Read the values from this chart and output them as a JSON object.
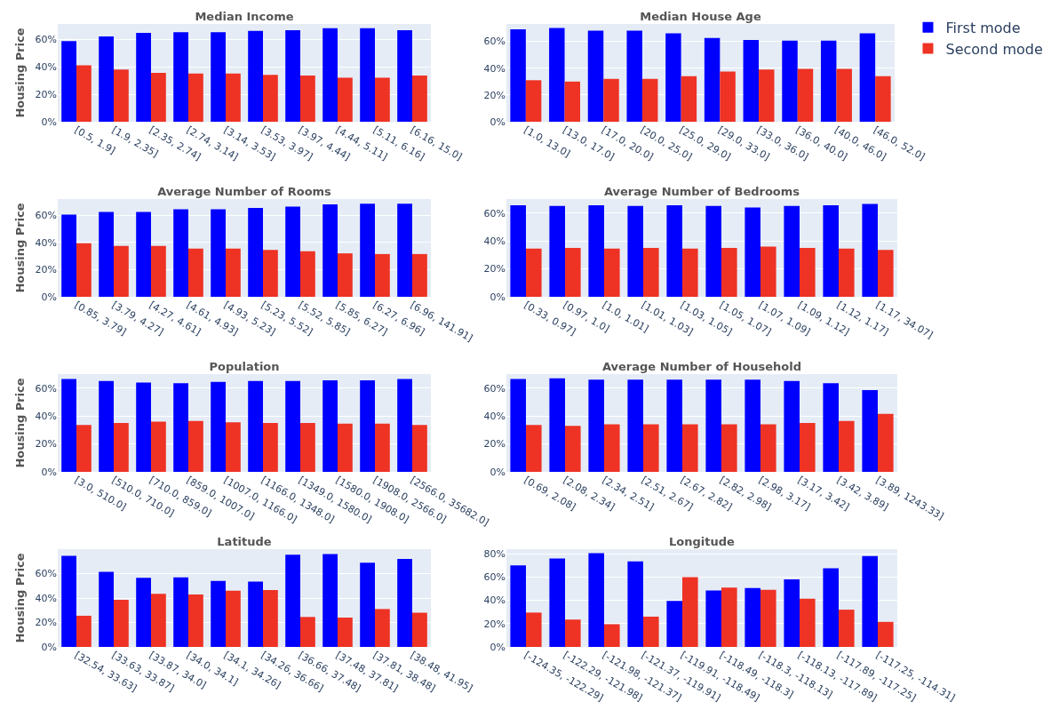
{
  "chart_data": [
    {
      "type": "bar",
      "title": "Median Income",
      "ylabel": "Housing Price",
      "categories": [
        "[0.5, 1.9]",
        "[1.9, 2.35]",
        "[2.35, 2.74]",
        "[2.74, 3.14]",
        "[3.14, 3.53]",
        "[3.53, 3.97]",
        "[3.97, 4.44]",
        "[4.44, 5.11]",
        "[5.11, 6.16]",
        "[6.16, 15.0]"
      ],
      "series": [
        {
          "color": "#0000ff",
          "values": [
            58.5,
            62,
            64.5,
            65,
            65,
            66,
            66.5,
            68,
            68,
            66.5
          ]
        },
        {
          "color": "#ee3224",
          "values": [
            41,
            38,
            35.5,
            35,
            35,
            34,
            33.5,
            32,
            32,
            33.5
          ]
        }
      ],
      "ylim": [
        0,
        71
      ],
      "yticks": [
        {
          "value": 0,
          "label": "0%"
        },
        {
          "value": 20,
          "label": "20%"
        },
        {
          "value": 40,
          "label": "40%"
        },
        {
          "value": 60,
          "label": "60%"
        }
      ],
      "grid": "y"
    },
    {
      "type": "bar",
      "title": "Median House Age",
      "categories": [
        "[1.0, 13.0]",
        "[13.0, 17.0]",
        "[17.0, 20.0]",
        "[20.0, 25.0]",
        "[25.0, 29.0]",
        "[29.0, 33.0]",
        "[33.0, 36.0]",
        "[36.0, 40.0]",
        "[40.0, 46.0]",
        "[46.0, 52.0]"
      ],
      "series": [
        {
          "name": "First mode",
          "color": "#0000ff",
          "values": [
            69,
            70,
            68,
            68,
            66,
            62.5,
            61,
            60.5,
            60.5,
            66
          ]
        },
        {
          "name": "Second mode",
          "color": "#ee3224",
          "values": [
            31,
            30,
            32,
            32,
            34,
            37.5,
            39,
            39.5,
            39.5,
            34
          ]
        }
      ],
      "ylim": [
        0,
        73
      ],
      "yticks": [
        {
          "value": 0,
          "label": "0%"
        },
        {
          "value": 20,
          "label": "20%"
        },
        {
          "value": 40,
          "label": "40%"
        },
        {
          "value": 60,
          "label": "60%"
        }
      ],
      "grid": "y",
      "legend": "top right"
    },
    {
      "type": "bar",
      "title": "Average Number of Rooms",
      "ylabel": "Housing Price",
      "categories": [
        "[0.85, 3.79]",
        "[3.79, 4.27]",
        "[4.27, 4.61]",
        "[4.61, 4.93]",
        "[4.93, 5.23]",
        "[5.23, 5.52]",
        "[5.52, 5.85]",
        "[5.85, 6.27]",
        "[6.27, 6.96]",
        "[6.96, 141.91]"
      ],
      "series": [
        {
          "color": "#0000ff",
          "values": [
            60.5,
            62.5,
            62.5,
            64.5,
            64.5,
            65.5,
            66.5,
            68,
            68.5,
            68.5
          ]
        },
        {
          "color": "#ee3224",
          "values": [
            39.5,
            37.5,
            37.5,
            35.5,
            35.5,
            34.5,
            33.5,
            32,
            31.5,
            31.5
          ]
        }
      ],
      "ylim": [
        0,
        72
      ],
      "yticks": [
        {
          "value": 0,
          "label": "0%"
        },
        {
          "value": 20,
          "label": "20%"
        },
        {
          "value": 40,
          "label": "40%"
        },
        {
          "value": 60,
          "label": "60%"
        }
      ],
      "grid": "y"
    },
    {
      "type": "bar",
      "title": "Average Number of Bedrooms",
      "categories": [
        "[0.33, 0.97]",
        "[0.97, 1.0]",
        "[1.0, 1.01]",
        "[1.01, 1.03]",
        "[1.03, 1.05]",
        "[1.05, 1.07]",
        "[1.07, 1.09]",
        "[1.09, 1.12]",
        "[1.12, 1.17]",
        "[1.17, 34.07]"
      ],
      "series": [
        {
          "color": "#0000ff",
          "values": [
            65.5,
            65,
            65.5,
            65,
            65.5,
            65,
            64,
            65,
            65.5,
            66.5
          ]
        },
        {
          "color": "#ee3224",
          "values": [
            34.5,
            35,
            34.5,
            35,
            34.5,
            35,
            36,
            35,
            34.5,
            33.5
          ]
        }
      ],
      "ylim": [
        0,
        70
      ],
      "yticks": [
        {
          "value": 0,
          "label": "0%"
        },
        {
          "value": 20,
          "label": "20%"
        },
        {
          "value": 40,
          "label": "40%"
        },
        {
          "value": 60,
          "label": "60%"
        }
      ],
      "grid": "y"
    },
    {
      "type": "bar",
      "title": "Population",
      "ylabel": "Housing Price",
      "categories": [
        "[3.0, 510.0]",
        "[510.0, 710.0]",
        "[710.0, 859.0]",
        "[859.0, 1007.0]",
        "[1007.0, 1166.0]",
        "[1166.0, 1348.0]",
        "[1349.0, 1580.0]",
        "[1580.0, 1908.0]",
        "[1908.0, 2566.0]",
        "[2566.0, 35682.0]"
      ],
      "series": [
        {
          "color": "#0000ff",
          "values": [
            66.5,
            65,
            64,
            63.5,
            64.5,
            65,
            65,
            65.5,
            65.5,
            66.5
          ]
        },
        {
          "color": "#ee3224",
          "values": [
            33.5,
            35,
            36,
            36.5,
            35.5,
            35,
            35,
            34.5,
            34.5,
            33.5
          ]
        }
      ],
      "ylim": [
        0,
        70
      ],
      "yticks": [
        {
          "value": 0,
          "label": "0%"
        },
        {
          "value": 20,
          "label": "20%"
        },
        {
          "value": 40,
          "label": "40%"
        },
        {
          "value": 60,
          "label": "60%"
        }
      ],
      "grid": "y"
    },
    {
      "type": "bar",
      "title": "Average Number of Household",
      "categories": [
        "[0.69, 2.08]",
        "[2.08, 2.34]",
        "[2.34, 2.51]",
        "[2.51, 2.67]",
        "[2.67, 2.82]",
        "[2.82, 2.98]",
        "[2.98, 3.17]",
        "[3.17, 3.42]",
        "[3.42, 3.89]",
        "[3.89, 1243.33]"
      ],
      "series": [
        {
          "color": "#0000ff",
          "values": [
            66.5,
            67,
            66,
            66,
            66,
            66,
            66,
            65,
            63.5,
            58.5
          ]
        },
        {
          "color": "#ee3224",
          "values": [
            33.5,
            33,
            34,
            34,
            34,
            34,
            34,
            35,
            36.5,
            41.5
          ]
        }
      ],
      "ylim": [
        0,
        70
      ],
      "yticks": [
        {
          "value": 0,
          "label": "0%"
        },
        {
          "value": 20,
          "label": "20%"
        },
        {
          "value": 40,
          "label": "40%"
        },
        {
          "value": 60,
          "label": "60%"
        }
      ],
      "grid": "y"
    },
    {
      "type": "bar",
      "title": "Latitude",
      "ylabel": "Housing Price",
      "categories": [
        "[32.54, 33.63]",
        "[33.63, 33.87]",
        "[33.87, 34.0]",
        "[34.0, 34.1]",
        "[34.1, 34.26]",
        "[34.26, 36.66]",
        "[36.66, 37.48]",
        "[37.48, 37.81]",
        "[37.81, 38.48]",
        "[38.48, 41.95]"
      ],
      "series": [
        {
          "color": "#0000ff",
          "values": [
            74.5,
            61.5,
            56.5,
            57,
            54,
            53.5,
            75.5,
            76,
            69,
            72
          ]
        },
        {
          "color": "#ee3224",
          "values": [
            25.5,
            38.5,
            43.5,
            43,
            46,
            46.5,
            24.5,
            24,
            31,
            28
          ]
        }
      ],
      "ylim": [
        0,
        80
      ],
      "yticks": [
        {
          "value": 0,
          "label": "0%"
        },
        {
          "value": 20,
          "label": "20%"
        },
        {
          "value": 40,
          "label": "40%"
        },
        {
          "value": 60,
          "label": "60%"
        }
      ],
      "grid": "y"
    },
    {
      "type": "bar",
      "title": "Longitude",
      "categories": [
        "[-124.35, -122.29]",
        "[-122.29, -121.98]",
        "[-121.98, -121.37]",
        "[-121.37, -119.91]",
        "[-119.91, -118.49]",
        "[-118.49, -118.3]",
        "[-118.3, -118.13]",
        "[-118.13, -117.89]",
        "[-117.89, -117.25]",
        "[-117.25, -114.31]"
      ],
      "series": [
        {
          "color": "#0000ff",
          "values": [
            70,
            76,
            80.5,
            73.5,
            39.5,
            48.5,
            50.5,
            58,
            67.5,
            78
          ]
        },
        {
          "color": "#ee3224",
          "values": [
            29.5,
            23.5,
            19.5,
            26,
            60,
            51,
            49,
            41.5,
            32,
            21.5
          ]
        }
      ],
      "ylim": [
        0,
        84
      ],
      "yticks": [
        {
          "value": 0,
          "label": "0%"
        },
        {
          "value": 20,
          "label": "20%"
        },
        {
          "value": 40,
          "label": "40%"
        },
        {
          "value": 60,
          "label": "60%"
        },
        {
          "value": 80,
          "label": "80%"
        }
      ],
      "grid": "y"
    }
  ]
}
